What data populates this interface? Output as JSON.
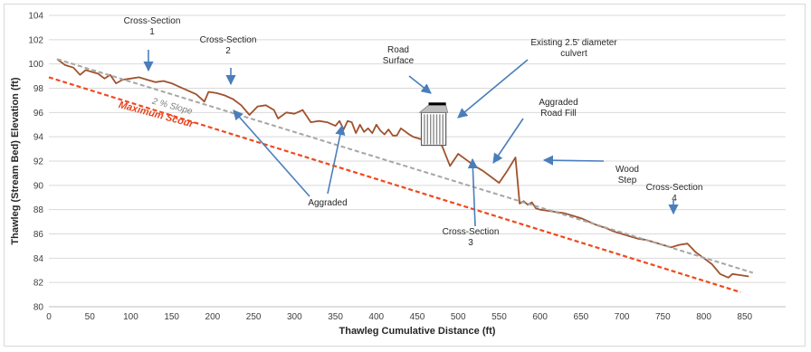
{
  "chart_data": {
    "type": "line",
    "title": "",
    "xlabel": "Thawleg Cumulative Distance (ft)",
    "ylabel": "Thawleg (Stream Bed) Elevation (ft)",
    "xlim": [
      0,
      900
    ],
    "ylim": [
      80,
      104
    ],
    "xticks": [
      "0",
      "50",
      "100",
      "150",
      "200",
      "250",
      "300",
      "350",
      "400",
      "450",
      "500",
      "550",
      "600",
      "650",
      "700",
      "750",
      "800",
      "850"
    ],
    "yticks": [
      "80",
      "82",
      "84",
      "86",
      "88",
      "90",
      "92",
      "94",
      "96",
      "98",
      "100",
      "102",
      "104"
    ],
    "grid": "horizontal",
    "series": [
      {
        "kind": "profile",
        "color": "#a0522d",
        "points": [
          [
            10,
            100.4
          ],
          [
            20,
            99.9
          ],
          [
            30,
            99.7
          ],
          [
            38,
            99.1
          ],
          [
            45,
            99.5
          ],
          [
            55,
            99.3
          ],
          [
            60,
            99.2
          ],
          [
            68,
            98.8
          ],
          [
            75,
            99.1
          ],
          [
            82,
            98.4
          ],
          [
            90,
            98.7
          ],
          [
            100,
            98.8
          ],
          [
            110,
            98.9
          ],
          [
            120,
            98.7
          ],
          [
            130,
            98.5
          ],
          [
            140,
            98.6
          ],
          [
            150,
            98.4
          ],
          [
            160,
            98.1
          ],
          [
            170,
            97.8
          ],
          [
            180,
            97.5
          ],
          [
            190,
            96.9
          ],
          [
            195,
            97.7
          ],
          [
            205,
            97.6
          ],
          [
            215,
            97.4
          ],
          [
            225,
            97.1
          ],
          [
            235,
            96.6
          ],
          [
            245,
            95.8
          ],
          [
            255,
            96.5
          ],
          [
            265,
            96.6
          ],
          [
            275,
            96.2
          ],
          [
            280,
            95.5
          ],
          [
            290,
            96.0
          ],
          [
            300,
            95.9
          ],
          [
            310,
            96.2
          ],
          [
            320,
            95.2
          ],
          [
            330,
            95.3
          ],
          [
            340,
            95.2
          ],
          [
            350,
            94.9
          ],
          [
            355,
            95.3
          ],
          [
            360,
            94.6
          ],
          [
            365,
            95.3
          ],
          [
            370,
            95.2
          ],
          [
            375,
            94.3
          ],
          [
            380,
            95.0
          ],
          [
            385,
            94.4
          ],
          [
            390,
            94.7
          ],
          [
            395,
            94.3
          ],
          [
            400,
            95.0
          ],
          [
            405,
            94.5
          ],
          [
            410,
            94.2
          ],
          [
            415,
            94.6
          ],
          [
            420,
            94.1
          ],
          [
            425,
            94.1
          ],
          [
            430,
            94.7
          ],
          [
            440,
            94.2
          ],
          [
            445,
            94.0
          ],
          [
            480,
            93.3
          ],
          [
            490,
            91.6
          ],
          [
            500,
            92.6
          ],
          [
            510,
            92.1
          ],
          [
            520,
            91.6
          ],
          [
            530,
            91.2
          ],
          [
            540,
            90.7
          ],
          [
            550,
            90.2
          ],
          [
            560,
            91.2
          ],
          [
            570,
            92.3
          ],
          [
            575,
            88.5
          ],
          [
            580,
            88.7
          ],
          [
            585,
            88.4
          ],
          [
            590,
            88.6
          ],
          [
            595,
            88.1
          ],
          [
            600,
            88.0
          ],
          [
            610,
            87.9
          ],
          [
            620,
            87.8
          ],
          [
            630,
            87.7
          ],
          [
            640,
            87.5
          ],
          [
            650,
            87.3
          ],
          [
            660,
            87.0
          ],
          [
            670,
            86.7
          ],
          [
            680,
            86.5
          ],
          [
            690,
            86.2
          ],
          [
            700,
            86.0
          ],
          [
            710,
            85.8
          ],
          [
            720,
            85.6
          ],
          [
            730,
            85.5
          ],
          [
            740,
            85.3
          ],
          [
            750,
            85.1
          ],
          [
            760,
            84.9
          ],
          [
            770,
            85.1
          ],
          [
            780,
            85.2
          ],
          [
            790,
            84.5
          ],
          [
            800,
            84.0
          ],
          [
            810,
            83.5
          ],
          [
            820,
            82.7
          ],
          [
            830,
            82.4
          ],
          [
            835,
            82.7
          ],
          [
            845,
            82.6
          ],
          [
            855,
            82.5
          ]
        ]
      },
      {
        "kind": "slope-line",
        "name": "2 % Slope",
        "color": "#a6a6a6",
        "points": [
          [
            10,
            100.4
          ],
          [
            860,
            82.8
          ]
        ]
      },
      {
        "kind": "scour-line",
        "name": "Maximum Scour",
        "color": "#f0491d",
        "points": [
          [
            0,
            98.9
          ],
          [
            845,
            81.2
          ]
        ]
      }
    ],
    "culvert": {
      "x0": 455,
      "x1": 485,
      "ytop": 96.0,
      "ybottom": 93.3,
      "road_top": 96.6
    },
    "annotations": [
      {
        "key": "cs1",
        "text": [
          "Cross-Section",
          "1"
        ]
      },
      {
        "key": "cs2",
        "text": [
          "Cross-Section",
          "2"
        ]
      },
      {
        "key": "road",
        "text": [
          "Road",
          "Surface"
        ]
      },
      {
        "key": "culvert",
        "text": [
          "Existing 2.5' diameter",
          "culvert"
        ]
      },
      {
        "key": "fill",
        "text": [
          "Aggraded",
          "Road Fill"
        ]
      },
      {
        "key": "wood",
        "text": [
          "Wood",
          "Step"
        ]
      },
      {
        "key": "cs4",
        "text": [
          "Cross-Section",
          "4"
        ]
      },
      {
        "key": "cs3",
        "text": [
          "Cross-Section",
          "3"
        ]
      },
      {
        "key": "agg",
        "text": [
          "Aggraded"
        ]
      }
    ]
  }
}
